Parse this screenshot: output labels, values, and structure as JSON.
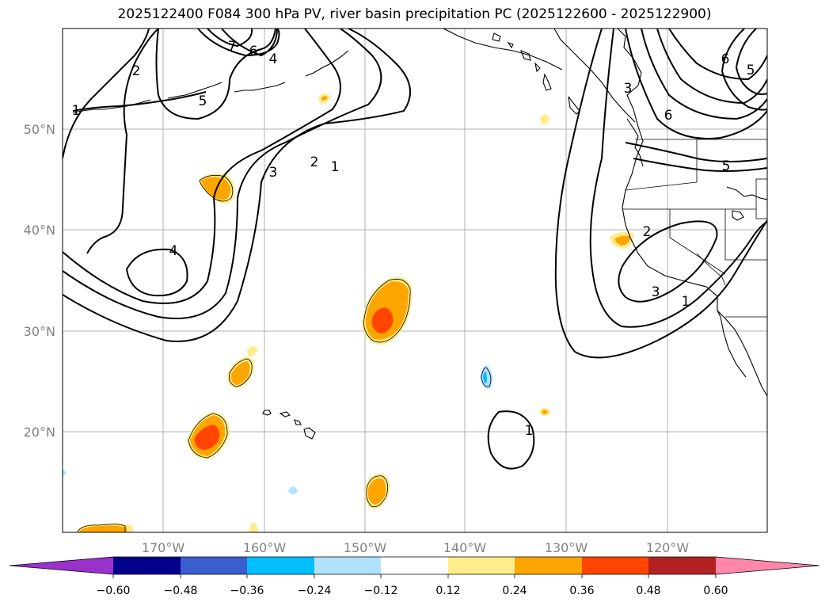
{
  "title": "2025122400 F084 300 hPa PV, river basin precipitation PC (2025122600 - 2025122900)",
  "lon_ticks": [
    "170°W",
    "160°W",
    "150°W",
    "140°W",
    "130°W",
    "120°W"
  ],
  "lat_ticks": [
    "50°N",
    "40°N",
    "30°N",
    "20°N"
  ],
  "contour_labels": [
    "2",
    "7",
    "6",
    "4",
    "5",
    "1",
    "3",
    "2",
    "1",
    "4",
    "3",
    "6",
    "5",
    "6",
    "5",
    "2",
    "3",
    "1",
    "1"
  ],
  "colorbar": {
    "tick_labels": [
      "−0.60",
      "−0.48",
      "−0.36",
      "−0.24",
      "−0.12",
      "0.12",
      "0.24",
      "0.36",
      "0.48",
      "0.60"
    ],
    "colors": [
      "#9932cc",
      "#00008b",
      "#3a5fcd",
      "#00bfff",
      "#b0e2ff",
      "#ffffff",
      "#ffec8b",
      "#ffa500",
      "#ff4500",
      "#b22222",
      "#ff88aa"
    ]
  }
}
